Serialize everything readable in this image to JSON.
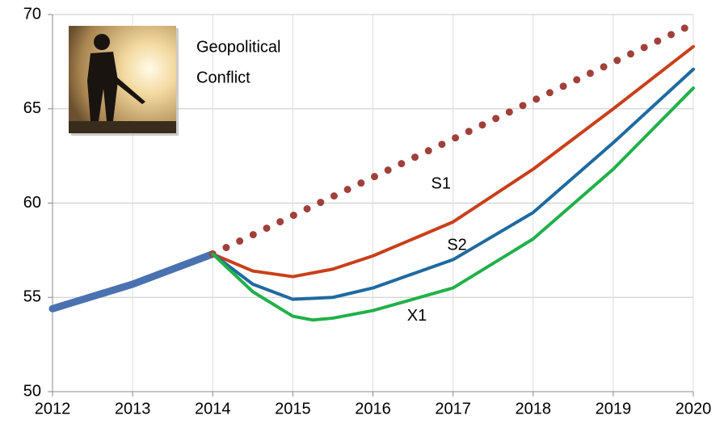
{
  "chart_data": {
    "type": "line",
    "annotations": [
      "Geopolitical",
      "Conflict"
    ],
    "xlim": [
      2012,
      2020
    ],
    "xticks": [
      2012,
      2013,
      2014,
      2015,
      2016,
      2017,
      2018,
      2019,
      2020
    ],
    "ylim": [
      50,
      70
    ],
    "yticks": [
      50,
      55,
      60,
      65,
      70
    ],
    "grid": true,
    "series": [
      {
        "color": "#4a72b0",
        "style": "thick",
        "x": [
          2012,
          2013,
          2014
        ],
        "values": [
          54.4,
          55.7,
          57.3
        ]
      },
      {
        "color": "#a0403a",
        "style": "dotted",
        "x": [
          2014,
          2020
        ],
        "values": [
          57.3,
          69.5
        ]
      },
      {
        "name": "S1",
        "color": "#c8401a",
        "style": "solid",
        "x": [
          2014,
          2014.5,
          2015,
          2015.5,
          2016,
          2017,
          2018,
          2019,
          2020
        ],
        "values": [
          57.3,
          56.4,
          56.1,
          56.5,
          57.2,
          59.0,
          61.8,
          65.0,
          68.3
        ]
      },
      {
        "name": "S2",
        "color": "#1f6aa0",
        "style": "solid",
        "x": [
          2014,
          2014.5,
          2015,
          2015.5,
          2016,
          2017,
          2018,
          2019,
          2020
        ],
        "values": [
          57.3,
          55.7,
          54.9,
          55.0,
          55.5,
          57.0,
          59.5,
          63.2,
          67.1
        ]
      },
      {
        "name": "X1",
        "color": "#22b04a",
        "style": "solid",
        "x": [
          2014,
          2014.5,
          2015,
          2015.25,
          2015.5,
          2016,
          2017,
          2018,
          2019,
          2020
        ],
        "values": [
          57.3,
          55.3,
          54.0,
          53.8,
          53.9,
          54.3,
          55.5,
          58.1,
          61.8,
          66.1
        ]
      }
    ]
  }
}
